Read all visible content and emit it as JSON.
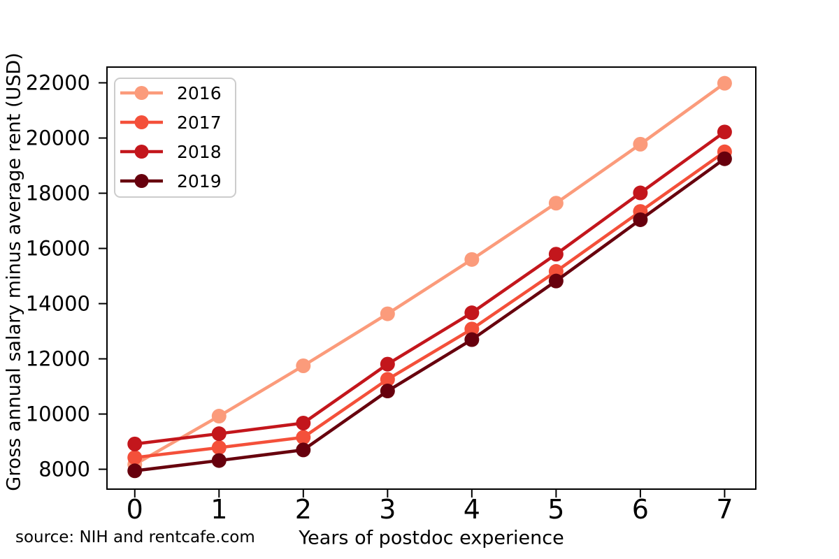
{
  "figure": {
    "background": "#FFFFFF",
    "source_note": "source: NIH and rentcafe.com"
  },
  "chart_data": {
    "type": "line",
    "title": "",
    "xlabel": "Years of postdoc experience",
    "ylabel": "Gross annual salary minus average rent (USD)",
    "x": [
      0,
      1,
      2,
      3,
      4,
      5,
      6,
      7
    ],
    "x_tick_labels": [
      "0",
      "1",
      "2",
      "3",
      "4",
      "5",
      "6",
      "7"
    ],
    "y_tick_values": [
      8000,
      10000,
      12000,
      14000,
      16000,
      18000,
      20000,
      22000
    ],
    "y_tick_labels": [
      "8000",
      "10000",
      "12000",
      "14000",
      "16000",
      "18000",
      "20000",
      "22000"
    ],
    "xlim": [
      -0.33,
      7.37
    ],
    "ylim": [
      7280,
      22570
    ],
    "grid": false,
    "marker": "circle",
    "axis_color": "#000000",
    "legend": {
      "position": "upper-left",
      "border_color": "#CCCCCC",
      "background": "#FFFFFF",
      "entries": [
        "2016",
        "2017",
        "2018",
        "2019"
      ]
    },
    "series": [
      {
        "name": "2016",
        "color": "#FB9B7B",
        "values": [
          8172,
          9924,
          11748,
          13632,
          15600,
          17640,
          19776,
          21984
        ]
      },
      {
        "name": "2017",
        "color": "#F4503A",
        "values": [
          8424,
          8784,
          9156,
          11256,
          13080,
          15168,
          17340,
          19500
        ]
      },
      {
        "name": "2018",
        "color": "#C3161C",
        "values": [
          8916,
          9288,
          9672,
          11808,
          13668,
          15792,
          18012,
          20220
        ]
      },
      {
        "name": "2019",
        "color": "#67000D",
        "values": [
          7944,
          8316,
          8700,
          10836,
          12696,
          14820,
          17040,
          19248
        ]
      }
    ]
  }
}
